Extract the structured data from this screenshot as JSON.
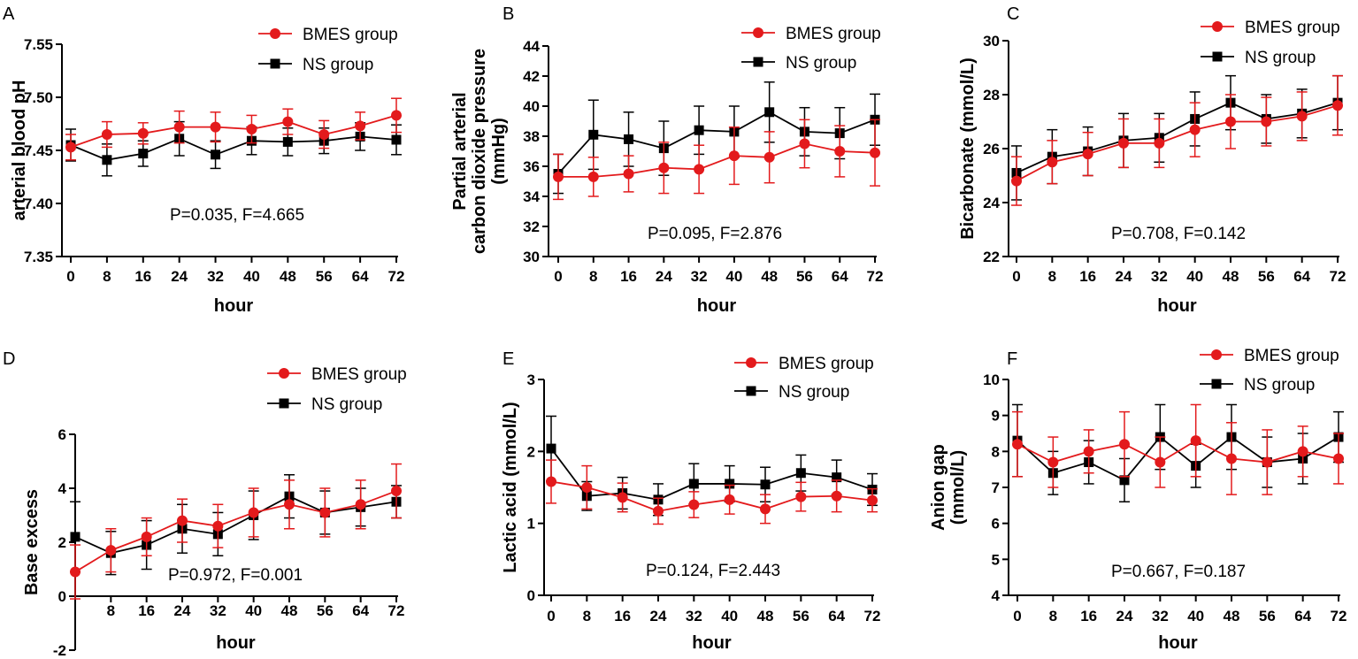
{
  "colors": {
    "bmes": "#e31a1c",
    "ns": "#000000"
  },
  "chart_data": [
    {
      "type": "line",
      "panel_label": "A",
      "xlabel": "hour",
      "ylabel_lines": [
        "arterial blood pH"
      ],
      "x": [
        0,
        8,
        16,
        24,
        32,
        40,
        48,
        56,
        64,
        72
      ],
      "x_tick_labels": [
        "0",
        "8",
        "16",
        "24",
        "32",
        "40",
        "48",
        "56",
        "64",
        "72"
      ],
      "ylim": [
        7.35,
        7.55
      ],
      "y_ticks": [
        7.35,
        7.4,
        7.45,
        7.5,
        7.55
      ],
      "y_tick_labels": [
        "7.35",
        "7.40",
        "7.45",
        "7.50",
        "7.55"
      ],
      "stat": "P=0.035,  F=4.665",
      "legend": [
        "BMES group",
        "NS group"
      ],
      "series": [
        {
          "name": "BMES group",
          "marker": "circle",
          "values": [
            7.453,
            7.465,
            7.466,
            7.472,
            7.472,
            7.47,
            7.477,
            7.465,
            7.473,
            7.483
          ],
          "errors": [
            0.012,
            0.012,
            0.01,
            0.015,
            0.014,
            0.013,
            0.012,
            0.013,
            0.013,
            0.016
          ]
        },
        {
          "name": "NS group",
          "marker": "square",
          "values": [
            7.455,
            7.441,
            7.447,
            7.461,
            7.446,
            7.459,
            7.458,
            7.459,
            7.463,
            7.46
          ],
          "errors": [
            0.015,
            0.015,
            0.012,
            0.016,
            0.013,
            0.013,
            0.013,
            0.012,
            0.013,
            0.014
          ]
        }
      ]
    },
    {
      "type": "line",
      "panel_label": "B",
      "xlabel": "hour",
      "ylabel_lines": [
        "Partial arterial",
        "carbon dioxide pressure",
        "(mmHg)"
      ],
      "x": [
        0,
        8,
        16,
        24,
        32,
        40,
        48,
        56,
        64,
        72
      ],
      "x_tick_labels": [
        "0",
        "8",
        "16",
        "24",
        "32",
        "40",
        "48",
        "56",
        "64",
        "72"
      ],
      "ylim": [
        30,
        44
      ],
      "y_ticks": [
        30,
        32,
        34,
        36,
        38,
        40,
        42,
        44
      ],
      "y_tick_labels": [
        "30",
        "32",
        "34",
        "36",
        "38",
        "40",
        "42",
        "44"
      ],
      "stat": "P=0.095,  F=2.876",
      "legend": [
        "BMES group",
        "NS group"
      ],
      "series": [
        {
          "name": "BMES group",
          "marker": "circle",
          "values": [
            35.3,
            35.3,
            35.5,
            35.9,
            35.8,
            36.7,
            36.6,
            37.5,
            37.0,
            36.9
          ],
          "errors": [
            1.5,
            1.3,
            1.2,
            1.7,
            1.6,
            1.9,
            1.7,
            1.6,
            1.7,
            2.2
          ]
        },
        {
          "name": "NS group",
          "marker": "square",
          "values": [
            35.5,
            38.1,
            37.8,
            37.2,
            38.4,
            38.3,
            39.6,
            38.3,
            38.2,
            39.1
          ],
          "errors": [
            1.3,
            2.3,
            1.8,
            1.8,
            1.6,
            1.7,
            2.0,
            1.6,
            1.7,
            1.7
          ]
        }
      ]
    },
    {
      "type": "line",
      "panel_label": "C",
      "xlabel": "hour",
      "ylabel_lines": [
        "Bicarbonate (mmol/L)"
      ],
      "x": [
        0,
        8,
        16,
        24,
        32,
        40,
        48,
        56,
        64,
        72
      ],
      "x_tick_labels": [
        "0",
        "8",
        "16",
        "24",
        "32",
        "40",
        "48",
        "56",
        "64",
        "72"
      ],
      "ylim": [
        22,
        30
      ],
      "y_ticks": [
        22,
        24,
        26,
        28,
        30
      ],
      "y_tick_labels": [
        "22",
        "24",
        "26",
        "28",
        "30"
      ],
      "stat": "P=0.708,  F=0.142",
      "legend": [
        "BMES group",
        "NS group"
      ],
      "series": [
        {
          "name": "BMES group",
          "marker": "circle",
          "values": [
            24.8,
            25.5,
            25.8,
            26.2,
            26.2,
            26.7,
            27.0,
            27.0,
            27.2,
            27.6
          ],
          "errors": [
            0.9,
            0.8,
            0.8,
            0.9,
            0.9,
            1.0,
            1.0,
            0.9,
            0.9,
            1.1
          ]
        },
        {
          "name": "NS group",
          "marker": "square",
          "values": [
            25.1,
            25.7,
            25.9,
            26.3,
            26.4,
            27.1,
            27.7,
            27.1,
            27.3,
            27.7
          ],
          "errors": [
            1.0,
            1.0,
            0.9,
            1.0,
            0.9,
            1.0,
            1.0,
            0.9,
            0.9,
            1.0
          ]
        }
      ]
    },
    {
      "type": "line",
      "panel_label": "D",
      "xlabel": "hour",
      "ylabel_lines": [
        "Base excess"
      ],
      "x": [
        0,
        8,
        16,
        24,
        32,
        40,
        48,
        56,
        64,
        72
      ],
      "x_tick_labels": [
        "",
        "8",
        "16",
        "24",
        "32",
        "40",
        "48",
        "56",
        "64",
        "72"
      ],
      "ylim": [
        -2,
        6
      ],
      "y_ticks": [
        -2,
        0,
        2,
        4,
        6
      ],
      "y_tick_labels": [
        "-2",
        "0",
        "2",
        "4",
        "6"
      ],
      "stat": "P=0.972,  F=0.001",
      "legend": [
        "BMES group",
        "NS group"
      ],
      "series": [
        {
          "name": "BMES group",
          "marker": "circle",
          "values": [
            0.9,
            1.7,
            2.2,
            2.8,
            2.6,
            3.1,
            3.4,
            3.1,
            3.4,
            3.9
          ],
          "errors": [
            1.0,
            0.8,
            0.7,
            0.8,
            0.8,
            0.9,
            0.9,
            0.9,
            0.9,
            1.0
          ]
        },
        {
          "name": "NS group",
          "marker": "square",
          "values": [
            2.2,
            1.6,
            1.9,
            2.5,
            2.3,
            3.0,
            3.7,
            3.1,
            3.3,
            3.5
          ],
          "errors": [
            1.3,
            0.8,
            0.9,
            0.9,
            0.8,
            0.9,
            0.8,
            0.8,
            0.7,
            0.6
          ]
        }
      ]
    },
    {
      "type": "line",
      "panel_label": "E",
      "xlabel": "hour",
      "ylabel_lines": [
        "Lactic acid (mmol/L)"
      ],
      "x": [
        0,
        8,
        16,
        24,
        32,
        40,
        48,
        56,
        64,
        72
      ],
      "x_tick_labels": [
        "0",
        "8",
        "16",
        "24",
        "32",
        "40",
        "48",
        "56",
        "64",
        "72"
      ],
      "ylim": [
        0,
        3
      ],
      "y_ticks": [
        0,
        1,
        2,
        3
      ],
      "y_tick_labels": [
        "0",
        "1",
        "2",
        "3"
      ],
      "stat": "P=0.124,  F=2.443",
      "legend": [
        "BMES group",
        "NS group"
      ],
      "series": [
        {
          "name": "BMES group",
          "marker": "circle",
          "values": [
            1.58,
            1.5,
            1.36,
            1.17,
            1.26,
            1.33,
            1.2,
            1.37,
            1.38,
            1.32
          ],
          "errors": [
            0.3,
            0.3,
            0.2,
            0.18,
            0.18,
            0.2,
            0.2,
            0.2,
            0.22,
            0.16
          ]
        },
        {
          "name": "NS group",
          "marker": "square",
          "values": [
            2.04,
            1.38,
            1.42,
            1.33,
            1.55,
            1.55,
            1.54,
            1.7,
            1.64,
            1.47
          ],
          "errors": [
            0.45,
            0.2,
            0.22,
            0.22,
            0.28,
            0.25,
            0.24,
            0.25,
            0.24,
            0.22
          ]
        }
      ]
    },
    {
      "type": "line",
      "panel_label": "F",
      "xlabel": "hour",
      "ylabel_lines": [
        "Anion gap",
        "(mmol/L)"
      ],
      "x": [
        0,
        8,
        16,
        24,
        32,
        40,
        48,
        56,
        64,
        72
      ],
      "x_tick_labels": [
        "0",
        "8",
        "16",
        "24",
        "32",
        "40",
        "48",
        "56",
        "64",
        "72"
      ],
      "ylim": [
        4,
        10
      ],
      "y_ticks": [
        4,
        5,
        6,
        7,
        8,
        9,
        10
      ],
      "y_tick_labels": [
        "4",
        "5",
        "6",
        "7",
        "8",
        "9",
        "10"
      ],
      "stat": "P=0.667,  F=0.187",
      "legend": [
        "BMES group",
        "NS group"
      ],
      "series": [
        {
          "name": "BMES group",
          "marker": "circle",
          "values": [
            8.2,
            7.7,
            8.0,
            8.2,
            7.7,
            8.3,
            7.8,
            7.7,
            8.0,
            7.8
          ],
          "errors": [
            0.9,
            0.7,
            0.6,
            0.9,
            0.7,
            1.0,
            1.0,
            0.9,
            0.7,
            0.7
          ]
        },
        {
          "name": "NS group",
          "marker": "square",
          "values": [
            8.3,
            7.4,
            7.7,
            7.2,
            8.4,
            7.6,
            8.4,
            7.7,
            7.8,
            8.4
          ],
          "errors": [
            1.0,
            0.6,
            0.6,
            0.6,
            0.9,
            0.6,
            0.9,
            0.7,
            0.7,
            0.7
          ]
        }
      ]
    }
  ]
}
